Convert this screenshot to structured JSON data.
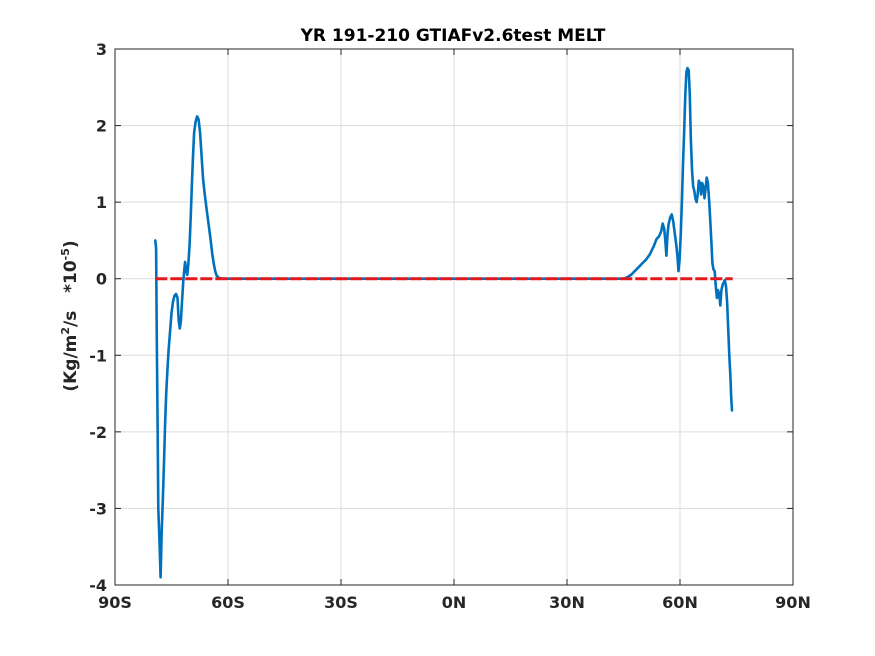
{
  "chart_data": {
    "type": "line",
    "title": "YR 191-210 GTIAFv2.6test MELT",
    "ylabel": {
      "pre": "(Kg/m",
      "sup1": "2",
      "mid": "/s   *10",
      "sup2": "-5",
      "post": ")"
    },
    "xlabel": "",
    "xlim": [
      -90,
      90
    ],
    "ylim": [
      -4,
      3
    ],
    "grid": true,
    "x_ticks": [
      {
        "value": -90,
        "label": "90S"
      },
      {
        "value": -60,
        "label": "60S"
      },
      {
        "value": -30,
        "label": "30S"
      },
      {
        "value": 0,
        "label": "0N"
      },
      {
        "value": 30,
        "label": "30N"
      },
      {
        "value": 60,
        "label": "60N"
      },
      {
        "value": 90,
        "label": "90N"
      }
    ],
    "y_ticks": [
      {
        "value": 3,
        "label": "3"
      },
      {
        "value": 2,
        "label": "2"
      },
      {
        "value": 1,
        "label": "1"
      },
      {
        "value": 0,
        "label": "0"
      },
      {
        "value": -1,
        "label": "-1"
      },
      {
        "value": -2,
        "label": "-2"
      },
      {
        "value": -3,
        "label": "-3"
      },
      {
        "value": -4,
        "label": "-4"
      }
    ],
    "series": [
      {
        "color": "#0072BD",
        "style": "solid",
        "points": [
          [
            -79.3,
            0.5
          ],
          [
            -79.1,
            0.4
          ],
          [
            -78.9,
            -0.8
          ],
          [
            -78.7,
            -1.9
          ],
          [
            -78.5,
            -3.0
          ],
          [
            -78.2,
            -3.4
          ],
          [
            -77.9,
            -3.9
          ],
          [
            -77.6,
            -3.3
          ],
          [
            -77.3,
            -2.9
          ],
          [
            -77.0,
            -2.4
          ],
          [
            -76.7,
            -1.9
          ],
          [
            -76.4,
            -1.5
          ],
          [
            -76.1,
            -1.2
          ],
          [
            -75.8,
            -0.95
          ],
          [
            -75.4,
            -0.7
          ],
          [
            -75.0,
            -0.45
          ],
          [
            -74.6,
            -0.3
          ],
          [
            -74.2,
            -0.22
          ],
          [
            -73.8,
            -0.2
          ],
          [
            -73.4,
            -0.25
          ],
          [
            -73.1,
            -0.55
          ],
          [
            -72.8,
            -0.65
          ],
          [
            -72.5,
            -0.55
          ],
          [
            -72.2,
            -0.3
          ],
          [
            -71.9,
            -0.05
          ],
          [
            -71.6,
            0.12
          ],
          [
            -71.4,
            0.22
          ],
          [
            -71.1,
            0.1
          ],
          [
            -70.8,
            0.05
          ],
          [
            -70.5,
            0.2
          ],
          [
            -70.2,
            0.45
          ],
          [
            -69.9,
            0.8
          ],
          [
            -69.6,
            1.2
          ],
          [
            -69.3,
            1.6
          ],
          [
            -69.0,
            1.9
          ],
          [
            -68.6,
            2.05
          ],
          [
            -68.2,
            2.12
          ],
          [
            -67.8,
            2.08
          ],
          [
            -67.4,
            1.9
          ],
          [
            -67.0,
            1.6
          ],
          [
            -66.6,
            1.3
          ],
          [
            -66.2,
            1.12
          ],
          [
            -65.8,
            0.95
          ],
          [
            -65.4,
            0.8
          ],
          [
            -65.0,
            0.65
          ],
          [
            -64.6,
            0.5
          ],
          [
            -64.2,
            0.33
          ],
          [
            -63.8,
            0.2
          ],
          [
            -63.4,
            0.1
          ],
          [
            -63.0,
            0.04
          ],
          [
            -62.4,
            0.01
          ],
          [
            -61.5,
            0.0
          ],
          [
            45.0,
            0.0
          ],
          [
            46.0,
            0.02
          ],
          [
            47.0,
            0.05
          ],
          [
            48.0,
            0.1
          ],
          [
            49.0,
            0.15
          ],
          [
            50.0,
            0.2
          ],
          [
            51.0,
            0.25
          ],
          [
            52.0,
            0.32
          ],
          [
            53.0,
            0.42
          ],
          [
            53.8,
            0.52
          ],
          [
            54.4,
            0.55
          ],
          [
            55.0,
            0.62
          ],
          [
            55.4,
            0.72
          ],
          [
            55.8,
            0.65
          ],
          [
            56.1,
            0.5
          ],
          [
            56.4,
            0.3
          ],
          [
            56.7,
            0.6
          ],
          [
            57.0,
            0.72
          ],
          [
            57.4,
            0.8
          ],
          [
            57.8,
            0.84
          ],
          [
            58.2,
            0.75
          ],
          [
            58.6,
            0.6
          ],
          [
            59.0,
            0.45
          ],
          [
            59.3,
            0.3
          ],
          [
            59.6,
            0.1
          ],
          [
            59.9,
            0.25
          ],
          [
            60.2,
            0.6
          ],
          [
            60.5,
            1.0
          ],
          [
            60.8,
            1.5
          ],
          [
            61.1,
            1.9
          ],
          [
            61.4,
            2.4
          ],
          [
            61.7,
            2.7
          ],
          [
            62.0,
            2.75
          ],
          [
            62.3,
            2.72
          ],
          [
            62.6,
            2.4
          ],
          [
            62.9,
            1.8
          ],
          [
            63.2,
            1.4
          ],
          [
            63.5,
            1.2
          ],
          [
            63.8,
            1.15
          ],
          [
            64.1,
            1.05
          ],
          [
            64.4,
            1.0
          ],
          [
            64.7,
            1.1
          ],
          [
            65.0,
            1.28
          ],
          [
            65.3,
            1.25
          ],
          [
            65.6,
            1.1
          ],
          [
            65.9,
            1.25
          ],
          [
            66.2,
            1.2
          ],
          [
            66.5,
            1.05
          ],
          [
            66.8,
            1.18
          ],
          [
            67.1,
            1.32
          ],
          [
            67.4,
            1.25
          ],
          [
            67.7,
            1.05
          ],
          [
            68.0,
            0.8
          ],
          [
            68.3,
            0.5
          ],
          [
            68.6,
            0.2
          ],
          [
            68.9,
            0.12
          ],
          [
            69.2,
            0.1
          ],
          [
            69.5,
            -0.1
          ],
          [
            69.8,
            -0.25
          ],
          [
            70.1,
            -0.15
          ],
          [
            70.4,
            -0.2
          ],
          [
            70.7,
            -0.35
          ],
          [
            71.0,
            -0.15
          ],
          [
            71.3,
            -0.08
          ],
          [
            71.6,
            -0.05
          ],
          [
            71.9,
            -0.02
          ],
          [
            72.2,
            -0.1
          ],
          [
            72.5,
            -0.3
          ],
          [
            72.8,
            -0.65
          ],
          [
            73.1,
            -1.0
          ],
          [
            73.4,
            -1.3
          ],
          [
            73.6,
            -1.55
          ],
          [
            73.8,
            -1.72
          ]
        ]
      },
      {
        "color": "#E31A1C",
        "style": "dashed",
        "points": [
          [
            -79.3,
            0.0
          ],
          [
            74.0,
            0.0
          ]
        ]
      }
    ]
  }
}
